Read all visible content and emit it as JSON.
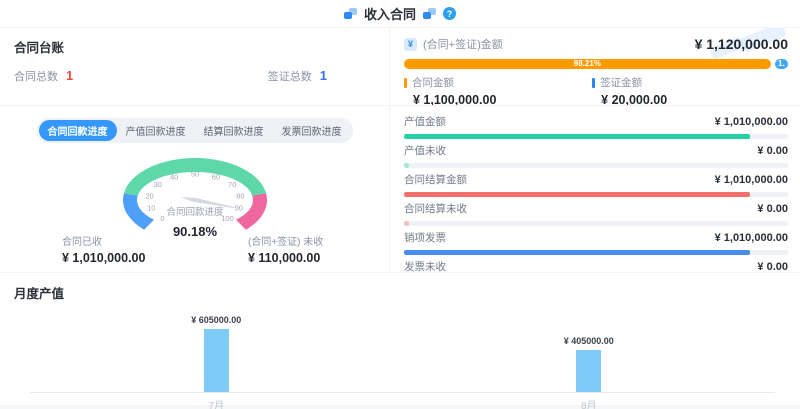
{
  "header": {
    "title": "收入合同",
    "help_icon": "?"
  },
  "ledger": {
    "title": "合同台账",
    "stats": [
      {
        "label": "合同总数",
        "value": "1",
        "color": "#f5483b"
      },
      {
        "label": "签证总数",
        "value": "1",
        "color": "#3a6ef0"
      }
    ]
  },
  "amount_summary": {
    "title": "(合同+签证)金额",
    "total": "¥ 1,120,000.00",
    "icon": "¥",
    "bar": {
      "segments": [
        {
          "label": "98.21%",
          "width_pct": 95.5,
          "color": "#ff9a00",
          "flex": false
        },
        {
          "label": "1.",
          "width_pct": 3.2,
          "color": "#42a6f6",
          "flex": true
        }
      ]
    },
    "legend": [
      {
        "label": "合同金额",
        "value": "¥ 1,100,000.00",
        "color": "#ff9a00"
      },
      {
        "label": "签证金额",
        "value": "¥ 20,000.00",
        "color": "#2a87f0"
      }
    ]
  },
  "progress_tabs": {
    "active_index": 0,
    "items": [
      "合同回款进度",
      "产值回款进度",
      "结算回款进度",
      "发票回款进度"
    ]
  },
  "gauge": {
    "name": "合同回款进度",
    "percent": "90.18%",
    "value": 90.18,
    "min": 0,
    "max": 100,
    "ticks": [
      "0",
      "10",
      "20",
      "30",
      "40",
      "50",
      "60",
      "70",
      "80",
      "90",
      "100"
    ],
    "segments": [
      {
        "from": 0,
        "to": 20,
        "color": "#4d9ff7"
      },
      {
        "from": 20,
        "to": 80,
        "color": "#5ed8a9"
      },
      {
        "from": 80,
        "to": 100,
        "color": "#ef679e"
      }
    ],
    "needle_color": "#d5d9e0",
    "stats": [
      {
        "label": "合同已收",
        "value": "¥ 1,010,000.00"
      },
      {
        "label": "(合同+签证) 未收",
        "value": "¥ 110,000.00"
      }
    ]
  },
  "metrics": {
    "rows": [
      {
        "label": "产值金额",
        "value": "¥ 1,010,000.00",
        "fill_pct": 90,
        "color": "#27d0a5",
        "opacity": 1
      },
      {
        "label": "产值未收",
        "value": "¥ 0.00",
        "fill_pct": 1.4,
        "color": "#27d0a5",
        "opacity": 0.35
      },
      {
        "label": "合同结算金额",
        "value": "¥ 1,010,000.00",
        "fill_pct": 90,
        "color": "#f56e6e",
        "opacity": 1
      },
      {
        "label": "合同结算未收",
        "value": "¥ 0.00",
        "fill_pct": 1.4,
        "color": "#f56e6e",
        "opacity": 0.35
      },
      {
        "label": "销项发票",
        "value": "¥ 1,010,000.00",
        "fill_pct": 90,
        "color": "#4a8df0",
        "opacity": 1
      },
      {
        "label": "发票未收",
        "value": "¥ 0.00",
        "fill_pct": 1.4,
        "color": "#4a8df0",
        "opacity": 0.35
      }
    ]
  },
  "monthly_chart": {
    "title": "月度产值",
    "bar_color": "#7fcbf7",
    "bars": [
      {
        "month": "7月",
        "label": "¥ 605000.00",
        "value": 605000
      },
      {
        "month": "8月",
        "label": "¥ 405000.00",
        "value": 405000
      }
    ]
  },
  "chart_data": [
    {
      "type": "gauge",
      "title": "合同回款进度",
      "value": 90.18,
      "unit": "%",
      "range": [
        0,
        100
      ],
      "bands": [
        {
          "from": 0,
          "to": 20,
          "color": "#4d9ff7"
        },
        {
          "from": 20,
          "to": 80,
          "color": "#5ed8a9"
        },
        {
          "from": 80,
          "to": 100,
          "color": "#ef679e"
        }
      ]
    },
    {
      "type": "bar",
      "title": "月度产值",
      "categories": [
        "7月",
        "8月"
      ],
      "values": [
        605000,
        405000
      ],
      "ylim": [
        0,
        700000
      ]
    }
  ]
}
